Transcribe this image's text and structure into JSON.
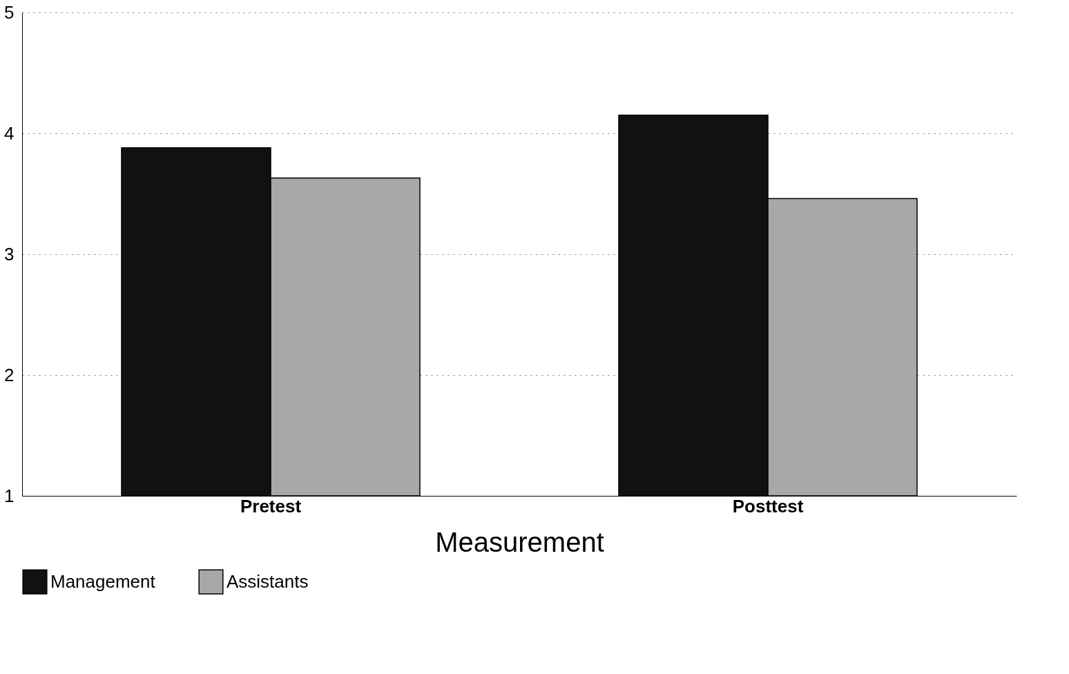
{
  "chart_data": {
    "type": "bar",
    "xlabel": "Measurement",
    "categories": [
      "Pretest",
      "Posttest"
    ],
    "series": [
      {
        "name": "Management",
        "color": "#111111",
        "values": [
          3.88,
          4.15
        ]
      },
      {
        "name": "Assistants",
        "color": "#a8a8a8",
        "values": [
          3.63,
          3.46
        ]
      }
    ],
    "ylim": [
      1,
      5
    ],
    "yticks": [
      1,
      2,
      3,
      4,
      5
    ],
    "grid": "y",
    "legend": "bottom"
  }
}
